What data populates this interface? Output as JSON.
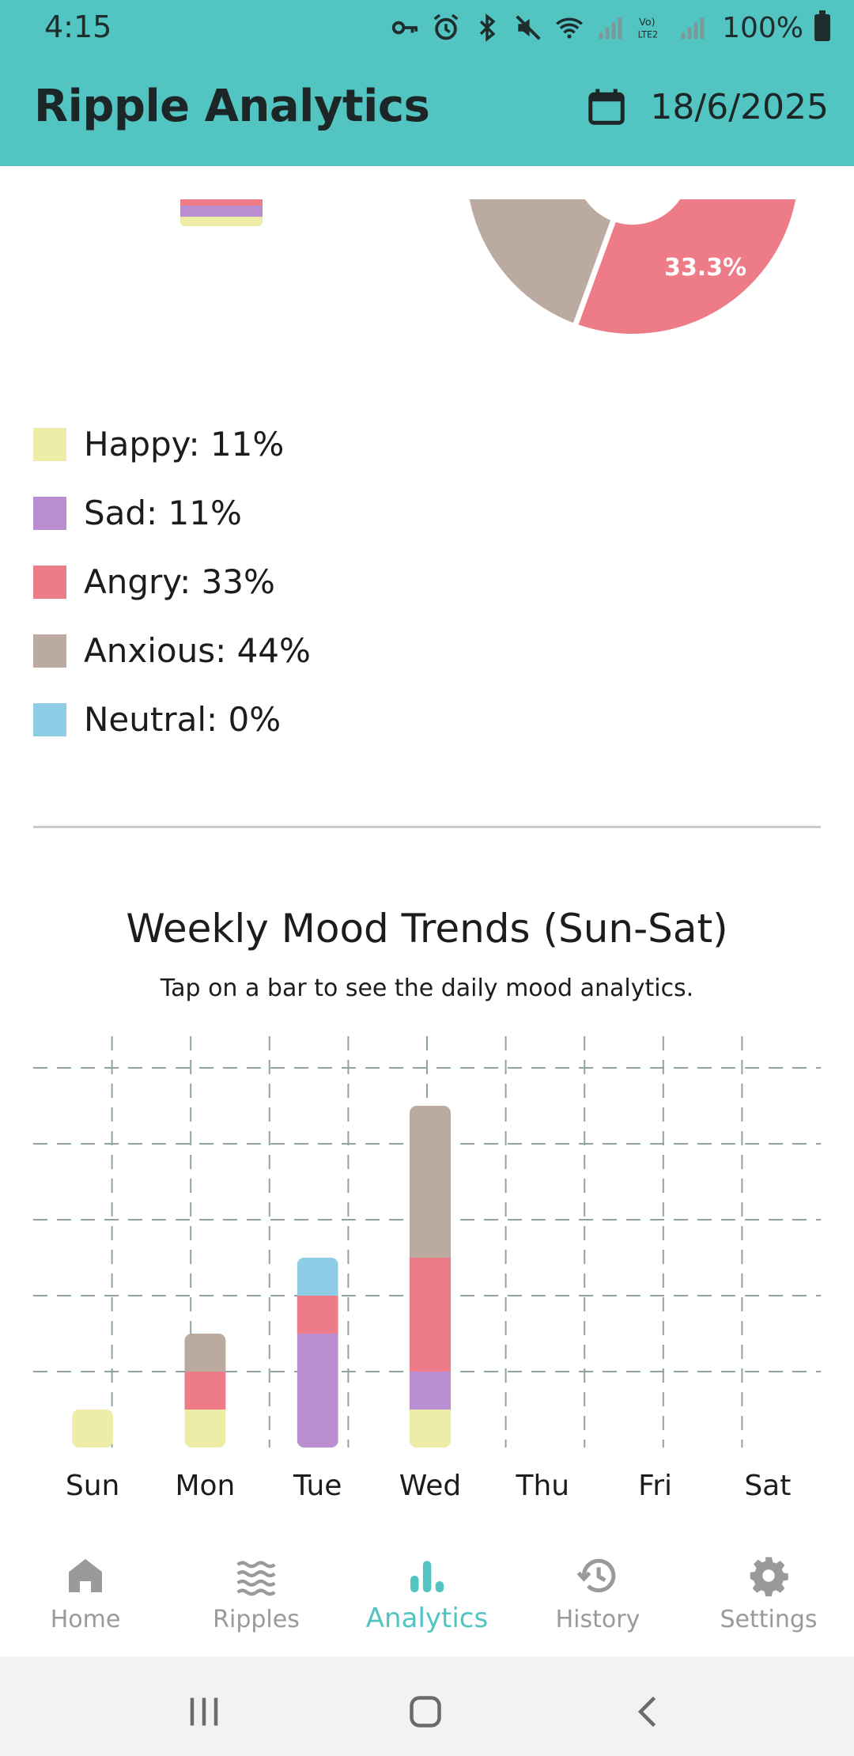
{
  "status": {
    "time": "4:15",
    "battery": "100%"
  },
  "header": {
    "title": "Ripple Analytics",
    "date": "18/6/2025"
  },
  "pie": {
    "label_visible": "33.3%"
  },
  "legend": [
    {
      "label": "Happy: 11%",
      "color": "#eeeda8"
    },
    {
      "label": "Sad: 11%",
      "color": "#b98fd2"
    },
    {
      "label": "Angry: 33%",
      "color": "#ee7b88"
    },
    {
      "label": "Anxious: 44%",
      "color": "#bbaa9f"
    },
    {
      "label": "Neutral: 0%",
      "color": "#8fcde6"
    }
  ],
  "weekly": {
    "title": "Weekly Mood Trends (Sun-Sat)",
    "subtitle": "Tap on a bar to see the daily mood analytics."
  },
  "chart_data": {
    "type": "bar",
    "stacked": true,
    "categories": [
      "Sun",
      "Mon",
      "Tue",
      "Wed",
      "Thu",
      "Fri",
      "Sat"
    ],
    "series": [
      {
        "name": "Happy",
        "color": "#eeeda8",
        "values": [
          1,
          1,
          0,
          1,
          0,
          0,
          0
        ]
      },
      {
        "name": "Sad",
        "color": "#b98fd2",
        "values": [
          0,
          0,
          3,
          1,
          0,
          0,
          0
        ]
      },
      {
        "name": "Angry",
        "color": "#ee7b88",
        "values": [
          0,
          1,
          1,
          3,
          0,
          0,
          0
        ]
      },
      {
        "name": "Anxious",
        "color": "#bbaa9f",
        "values": [
          0,
          1,
          0,
          4,
          0,
          0,
          0
        ]
      },
      {
        "name": "Neutral",
        "color": "#8fcde6",
        "values": [
          0,
          0,
          1,
          0,
          0,
          0,
          0
        ]
      }
    ],
    "ylim": [
      0,
      10
    ],
    "grid": true
  },
  "nav": {
    "items": [
      {
        "label": "Home",
        "icon": "home-icon"
      },
      {
        "label": "Ripples",
        "icon": "waves-icon"
      },
      {
        "label": "Analytics",
        "icon": "bar-chart-icon",
        "active": true
      },
      {
        "label": "History",
        "icon": "history-icon"
      },
      {
        "label": "Settings",
        "icon": "gear-icon"
      }
    ]
  },
  "colors": {
    "accent": "#52c4c1",
    "inactive_nav": "#9a9a9a"
  }
}
